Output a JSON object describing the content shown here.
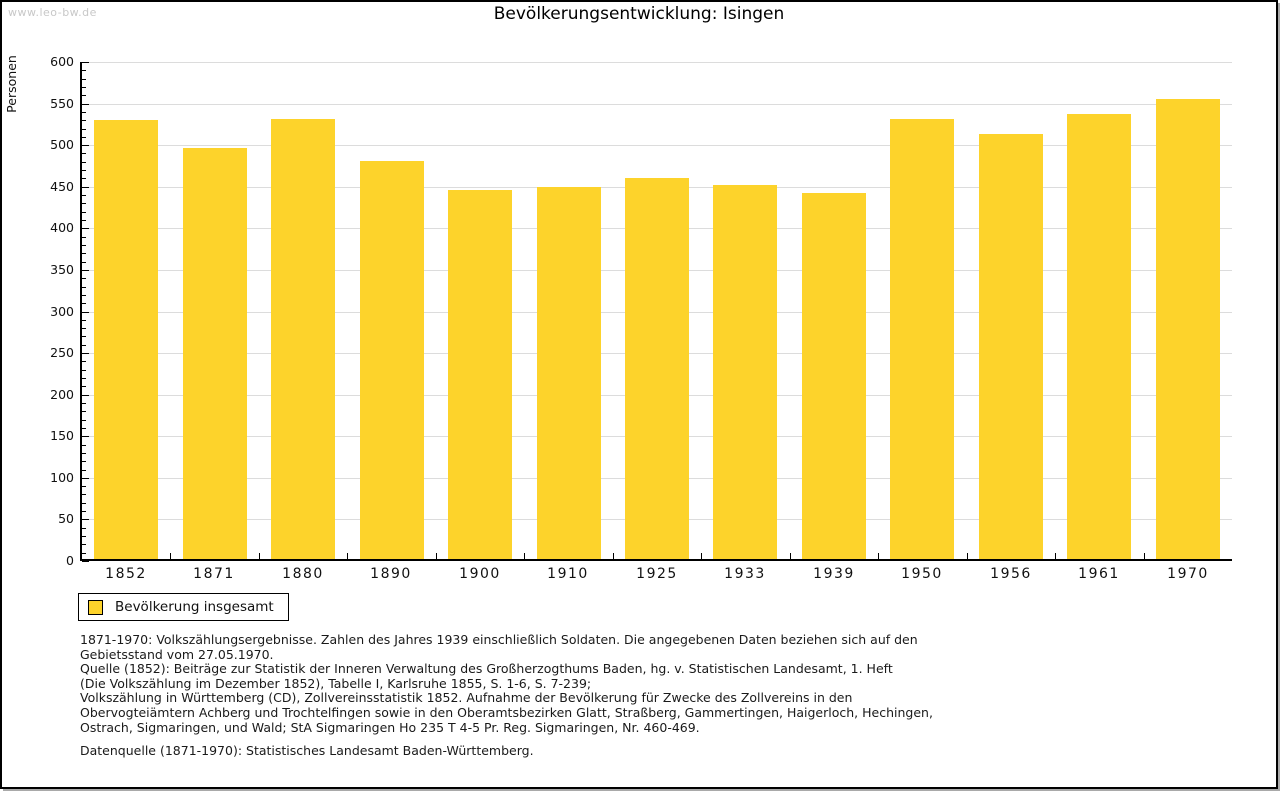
{
  "watermark": "www.leo-bw.de",
  "chart_data": {
    "type": "bar",
    "title": "Bevölkerungsentwicklung: Isingen",
    "ylabel": "Personen",
    "xlabel": "",
    "categories": [
      "1852",
      "1871",
      "1880",
      "1890",
      "1900",
      "1910",
      "1925",
      "1933",
      "1939",
      "1950",
      "1956",
      "1961",
      "1970"
    ],
    "values": [
      530,
      497,
      531,
      481,
      446,
      450,
      461,
      452,
      442,
      531,
      513,
      537,
      555
    ],
    "ylim": [
      0,
      600
    ],
    "ytick_step": 50,
    "minor_tick_step": 10,
    "grid": true,
    "legend": [
      "Bevölkerung insgesamt"
    ],
    "legend_position": "bottom-left"
  },
  "colors": {
    "bar": "#FDD32B",
    "grid": "#DCDCDC",
    "axis": "#000000",
    "watermark": "#C8C8C8",
    "text": "#1A1A1A"
  },
  "notes": [
    "1871-1970: Volkszählungsergebnisse. Zahlen des Jahres 1939 einschließlich Soldaten. Die angegebenen Daten beziehen sich auf den",
    "Gebietsstand vom 27.05.1970.",
    "Quelle (1852): Beiträge zur Statistik der Inneren Verwaltung des Großherzogthums Baden, hg. v. Statistischen Landesamt, 1. Heft",
    "(Die Volkszählung im Dezember 1852), Tabelle I, Karlsruhe 1855, S. 1-6, S. 7-239;",
    "Volkszählung in Württemberg (CD), Zollvereinsstatistik 1852. Aufnahme der Bevölkerung für Zwecke des Zollvereins in den",
    "Obervogteiämtern Achberg und Trochtelfingen sowie in den Oberamtsbezirken Glatt, Straßberg, Gammertingen, Haigerloch, Hechingen,",
    "Ostrach, Sigmaringen, und Wald; StA Sigmaringen Ho 235 T 4-5 Pr. Reg. Sigmaringen, Nr. 460-469."
  ],
  "datasource": "Datenquelle (1871-1970): Statistisches Landesamt Baden-Württemberg."
}
